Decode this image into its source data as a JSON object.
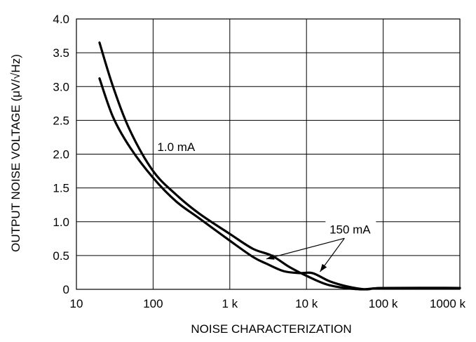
{
  "chart_data": {
    "type": "line",
    "xscale": "log",
    "xlim": [
      10,
      1000000
    ],
    "ylim": [
      0,
      4.0
    ],
    "grid": true,
    "xlabel": "NOISE CHARACTERIZATION",
    "ylabel": "OUTPUT NOISE VOLTAGE (μV/√Hz)",
    "x_ticks": [
      {
        "value": 10,
        "label": "10"
      },
      {
        "value": 100,
        "label": "100"
      },
      {
        "value": 1000,
        "label": "1 k"
      },
      {
        "value": 10000,
        "label": "10 k"
      },
      {
        "value": 100000,
        "label": "100 k"
      },
      {
        "value": 1000000,
        "label": "1000 k"
      }
    ],
    "y_ticks": [
      {
        "value": 0,
        "label": "0"
      },
      {
        "value": 0.5,
        "label": "0.5"
      },
      {
        "value": 1.0,
        "label": "1.0"
      },
      {
        "value": 1.5,
        "label": "1.5"
      },
      {
        "value": 2.0,
        "label": "2.0"
      },
      {
        "value": 2.5,
        "label": "2.5"
      },
      {
        "value": 3.0,
        "label": "3.0"
      },
      {
        "value": 3.5,
        "label": "3.5"
      },
      {
        "value": 4.0,
        "label": "4.0"
      }
    ],
    "series": [
      {
        "name": "1.0 mA",
        "points": [
          [
            20,
            3.65
          ],
          [
            30,
            3.0
          ],
          [
            50,
            2.35
          ],
          [
            100,
            1.75
          ],
          [
            200,
            1.4
          ],
          [
            400,
            1.12
          ],
          [
            1000,
            0.82
          ],
          [
            2000,
            0.6
          ],
          [
            3500,
            0.5
          ],
          [
            6000,
            0.33
          ],
          [
            10000,
            0.2
          ],
          [
            20000,
            0.06
          ],
          [
            50000,
            0.0
          ],
          [
            100000,
            0.02
          ],
          [
            1000000,
            0.02
          ]
        ]
      },
      {
        "name": "150 mA",
        "points": [
          [
            20,
            3.12
          ],
          [
            30,
            2.55
          ],
          [
            50,
            2.1
          ],
          [
            100,
            1.65
          ],
          [
            200,
            1.3
          ],
          [
            400,
            1.05
          ],
          [
            1000,
            0.72
          ],
          [
            2000,
            0.48
          ],
          [
            3000,
            0.38
          ],
          [
            5000,
            0.27
          ],
          [
            8000,
            0.24
          ],
          [
            12000,
            0.24
          ],
          [
            20000,
            0.12
          ],
          [
            35000,
            0.04
          ],
          [
            60000,
            0.0
          ],
          [
            100000,
            0.02
          ],
          [
            1000000,
            0.02
          ]
        ]
      }
    ],
    "annotations": [
      {
        "text": "1.0 mA",
        "x": 200,
        "y": 2.1,
        "points_to": []
      },
      {
        "text": "150 mA",
        "x": 37000,
        "y": 0.88,
        "points_to": [
          [
            3000,
            0.45
          ],
          [
            15000,
            0.26
          ]
        ]
      }
    ]
  }
}
